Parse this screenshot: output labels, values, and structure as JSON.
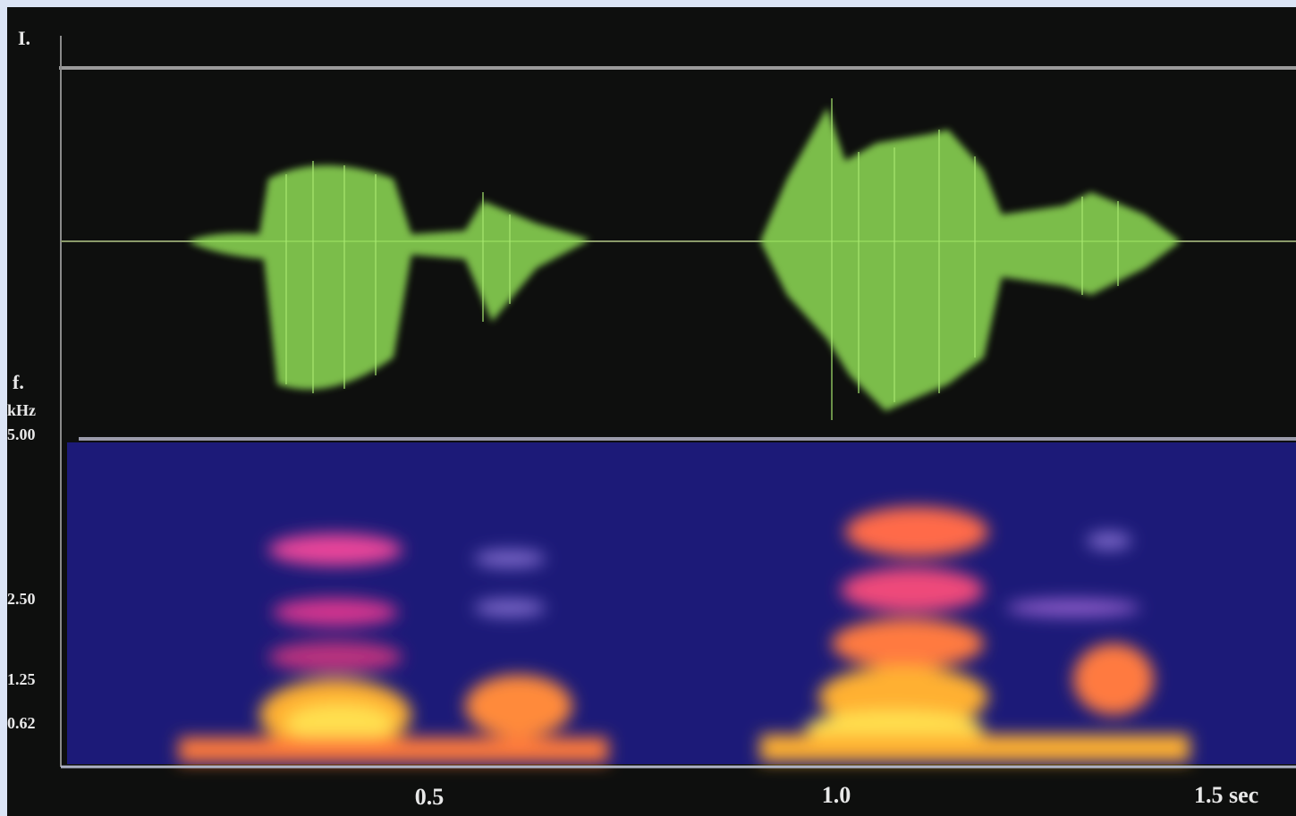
{
  "labels": {
    "amplitude": "I.",
    "frequency": "f.",
    "unit": "kHz"
  },
  "frequency_ticks": [
    "5.00",
    "2.50",
    "1.25",
    "0.62"
  ],
  "time_ticks": [
    "0.5",
    "1.0",
    "1.5 sec"
  ]
}
